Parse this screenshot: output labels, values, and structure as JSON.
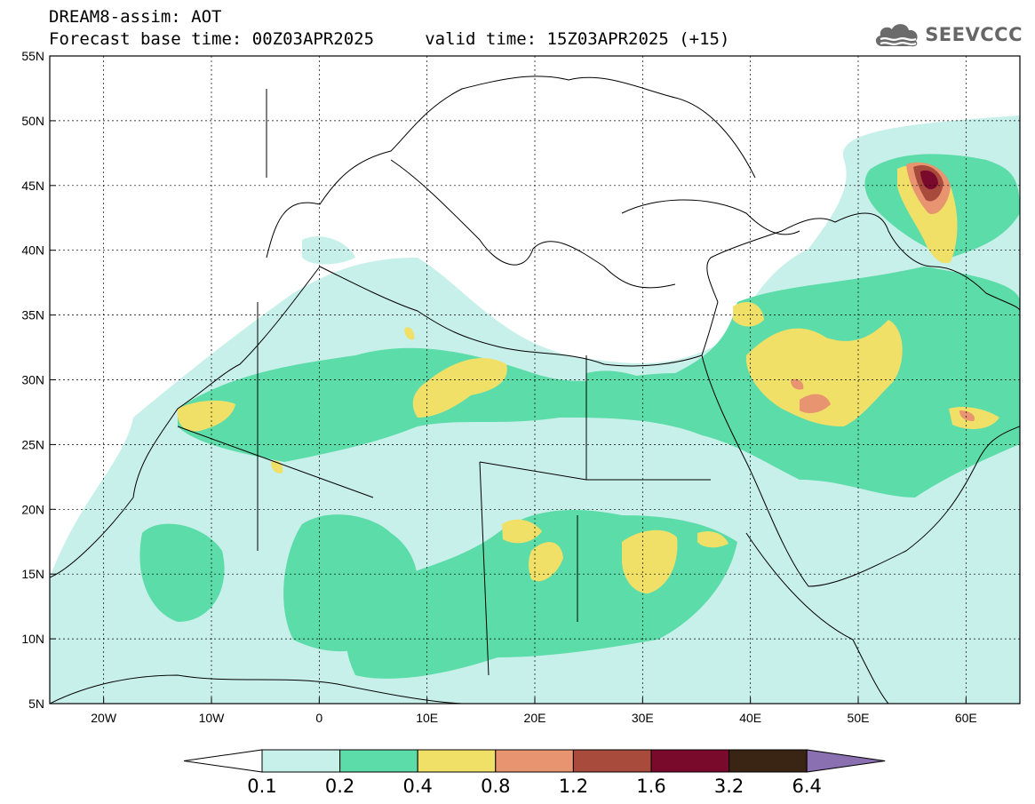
{
  "title": {
    "line1": "DREAM8-assim: AOT",
    "line2": "Forecast base time: 00Z03APR2025     valid time: 15Z03APR2025 (+15)"
  },
  "logo": {
    "text": "SEEVCCC",
    "icon": "cloud-icon",
    "color": "#666666"
  },
  "map": {
    "lat_labels": [
      "55N",
      "50N",
      "45N",
      "40N",
      "35N",
      "30N",
      "25N",
      "20N",
      "15N",
      "10N",
      "5N"
    ],
    "lon_labels": [
      "20W",
      "10W",
      "0",
      "10E",
      "20E",
      "30E",
      "40E",
      "50E",
      "60E"
    ],
    "lat_range": [
      5,
      55
    ],
    "lon_range": [
      -25,
      65
    ],
    "grid": "dashed"
  },
  "colorbar": {
    "labels": [
      "0.1",
      "0.2",
      "0.4",
      "0.8",
      "1.2",
      "1.6",
      "3.2",
      "6.4"
    ],
    "colors": [
      "#c8f0ea",
      "#5cdca8",
      "#f0e068",
      "#e89470",
      "#a84a3c",
      "#7a0a2c",
      "#3a2414",
      "#8a70b0"
    ],
    "below_color": "#ffffff"
  }
}
